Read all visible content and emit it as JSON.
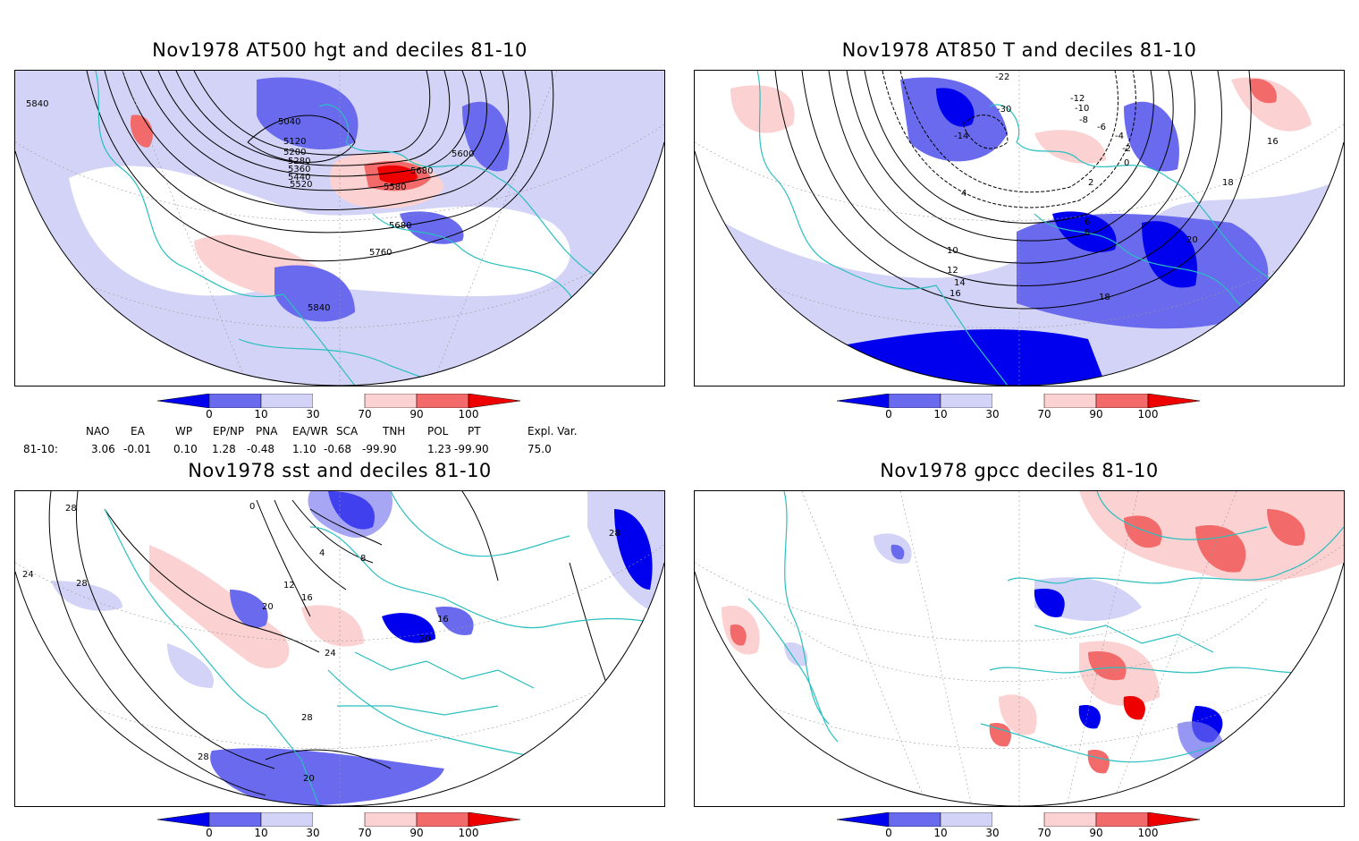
{
  "colors": {
    "deep_blue": "#0000ee",
    "mid_blue": "#6a6aee",
    "light_blue": "#d3d3f7",
    "light_red": "#fbd1d1",
    "mid_red": "#f26a6a",
    "deep_red": "#ee0000",
    "coast": "#2bbfbf",
    "contour": "#000000"
  },
  "panels": [
    {
      "id": "hgt500",
      "title": "Nov1978 AT500 hgt and deciles 81-10",
      "contour_labels": [
        "5840",
        "5040",
        "5120",
        "5200",
        "5280",
        "5360",
        "5440",
        "5520",
        "5600",
        "5680",
        "5580",
        "5680",
        "5760",
        "5840"
      ]
    },
    {
      "id": "t850",
      "title": "Nov1978 AT850 T and deciles 81-10",
      "contour_labels": [
        "-14",
        "-22",
        "-30",
        "-12",
        "-10",
        "-8",
        "-6",
        "-4",
        "-2",
        "0",
        "2",
        "4",
        "6",
        "8",
        "10",
        "12",
        "14",
        "16",
        "18",
        "20",
        "16",
        "18"
      ]
    },
    {
      "id": "sst",
      "title": "Nov1978 sst and deciles 81-10",
      "contour_labels": [
        "28",
        "24",
        "28",
        "0",
        "4",
        "8",
        "12",
        "16",
        "20",
        "24",
        "28",
        "28",
        "20",
        "20",
        "16",
        "28"
      ]
    },
    {
      "id": "gpcc",
      "title": "Nov1978 gpcc deciles 81-10",
      "contour_labels": []
    }
  ],
  "legend": {
    "ticks": [
      "0",
      "10",
      "30",
      "70",
      "90",
      "100"
    ]
  },
  "indices": {
    "headers": [
      "NAO",
      "EA",
      "WP",
      "EP/NP",
      "PNA",
      "EA/WR",
      "SCA",
      "TNH",
      "POL",
      "PT",
      "Expl. Var."
    ],
    "row_label": "81-10:",
    "values": [
      "3.06",
      "-0.01",
      "0.10",
      "1.28",
      "-0.48",
      "1.10",
      "-0.68",
      "-99.90",
      "1.23",
      "-99.90",
      "75.0"
    ]
  }
}
